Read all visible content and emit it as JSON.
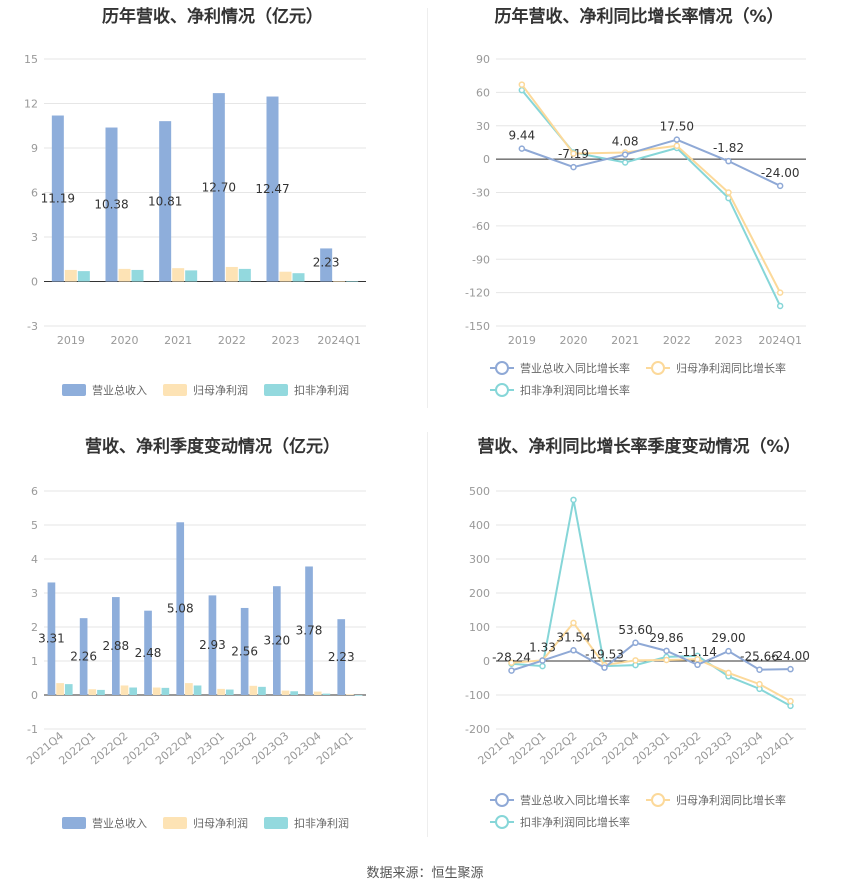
{
  "colors": {
    "revenue": "#8eaedb",
    "net_profit": "#fde3b5",
    "deducted_profit": "#93d9de",
    "revenue_line": "#8fa9d6",
    "net_profit_line": "#fcd99a",
    "deducted_line": "#86d6d8",
    "grid": "#e6e6e6",
    "axis_text": "#999999",
    "label_text": "#333333"
  },
  "source_text": "数据来源：恒生聚源",
  "chart_data": [
    {
      "id": "annual_amount",
      "type": "bar",
      "title": "历年营收、净利情况（亿元）",
      "categories": [
        "2019",
        "2020",
        "2021",
        "2022",
        "2023",
        "2024Q1"
      ],
      "ylim": [
        -3,
        15
      ],
      "yticks": [
        -3,
        0,
        3,
        6,
        9,
        12,
        15
      ],
      "grid": true,
      "legend_position": "bottom",
      "label_series": 0,
      "series": [
        {
          "name": "营业总收入",
          "values": [
            11.19,
            10.38,
            10.81,
            12.7,
            12.47,
            2.23
          ],
          "labels": [
            "11.19",
            "10.38",
            "10.81",
            "12.70",
            "12.47",
            "2.23"
          ]
        },
        {
          "name": "归母净利润",
          "values": [
            0.78,
            0.85,
            0.9,
            0.98,
            0.66,
            0.02
          ]
        },
        {
          "name": "扣非净利润",
          "values": [
            0.7,
            0.78,
            0.75,
            0.85,
            0.56,
            0.01
          ]
        }
      ]
    },
    {
      "id": "annual_growth",
      "type": "line",
      "title": "历年营收、净利同比增长率情况（%）",
      "categories": [
        "2019",
        "2020",
        "2021",
        "2022",
        "2023",
        "2024Q1"
      ],
      "ylim": [
        -150,
        90
      ],
      "yticks": [
        -150,
        -120,
        -90,
        -60,
        -30,
        0,
        30,
        60,
        90
      ],
      "grid": true,
      "legend_position": "bottom",
      "label_series": 0,
      "series": [
        {
          "name": "营业总收入同比增长率",
          "values": [
            9.44,
            -7.19,
            4.08,
            17.5,
            -1.82,
            -24.0
          ],
          "labels": [
            "9.44",
            "-7.19",
            "4.08",
            "17.50",
            "-1.82",
            "-24.00"
          ]
        },
        {
          "name": "归母净利润同比增长率",
          "values": [
            67,
            5,
            6,
            12,
            -30,
            -120
          ]
        },
        {
          "name": "扣非净利润同比增长率",
          "values": [
            62,
            6,
            -3,
            10,
            -35,
            -132
          ]
        }
      ]
    },
    {
      "id": "quarterly_amount",
      "type": "bar",
      "title": "营收、净利季度变动情况（亿元）",
      "categories": [
        "2021Q4",
        "2022Q1",
        "2022Q2",
        "2022Q3",
        "2022Q4",
        "2023Q1",
        "2023Q2",
        "2023Q3",
        "2023Q4",
        "2024Q1"
      ],
      "ylim": [
        -1,
        6
      ],
      "yticks": [
        -1,
        0,
        1,
        2,
        3,
        4,
        5,
        6
      ],
      "grid": true,
      "legend_position": "bottom",
      "label_series": 0,
      "series": [
        {
          "name": "营业总收入",
          "values": [
            3.31,
            2.26,
            2.88,
            2.48,
            5.08,
            2.93,
            2.56,
            3.2,
            3.78,
            2.23
          ],
          "labels": [
            "3.31",
            "2.26",
            "2.88",
            "2.48",
            "5.08",
            "2.93",
            "2.56",
            "3.20",
            "3.78",
            "2.23"
          ]
        },
        {
          "name": "归母净利润",
          "values": [
            0.35,
            0.17,
            0.28,
            0.22,
            0.35,
            0.18,
            0.27,
            0.13,
            0.1,
            0.02
          ]
        },
        {
          "name": "扣非净利润",
          "values": [
            0.32,
            0.15,
            0.22,
            0.21,
            0.28,
            0.16,
            0.24,
            0.11,
            0.04,
            -0.02
          ]
        }
      ]
    },
    {
      "id": "quarterly_growth",
      "type": "line",
      "title": "营收、净利同比增长率季度变动情况（%）",
      "categories": [
        "2021Q4",
        "2022Q1",
        "2022Q2",
        "2022Q3",
        "2022Q4",
        "2023Q1",
        "2023Q2",
        "2023Q3",
        "2023Q4",
        "2024Q1"
      ],
      "ylim": [
        -200,
        500
      ],
      "yticks": [
        -200,
        -100,
        0,
        100,
        200,
        300,
        400,
        500
      ],
      "grid": true,
      "legend_position": "bottom",
      "label_series": 0,
      "series": [
        {
          "name": "营业总收入同比增长率",
          "values": [
            -28.24,
            1.33,
            31.54,
            -19.53,
            53.6,
            29.86,
            -11.14,
            29.0,
            -25.66,
            -24.0
          ],
          "labels": [
            "-28.24",
            "1.33",
            "31.54",
            "-19.53",
            "53.60",
            "29.86",
            "-11.14",
            "29.00",
            "-25.66",
            "-24.00"
          ]
        },
        {
          "name": "归母净利润同比增长率",
          "values": [
            -5,
            2,
            112,
            -12,
            2,
            3,
            5,
            -35,
            -68,
            -118
          ]
        },
        {
          "name": "扣非净利润同比增长率",
          "values": [
            -8,
            -15,
            474,
            -15,
            -12,
            12,
            15,
            -45,
            -82,
            -132
          ]
        }
      ]
    }
  ]
}
